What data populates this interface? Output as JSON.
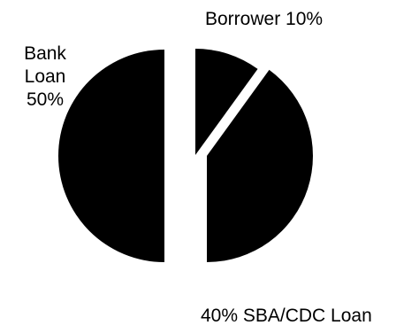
{
  "chart_data": {
    "type": "pie",
    "exploded": true,
    "fill_color": "#000000",
    "background_color": "#ffffff",
    "slices": [
      {
        "name": "Bank Loan",
        "value": 50,
        "label_lines": [
          "Bank",
          "Loan",
          "50%"
        ]
      },
      {
        "name": "SBA/CDC Loan",
        "value": 40,
        "label_lines": [
          "40% SBA/CDC Loan"
        ]
      },
      {
        "name": "Borrower",
        "value": 10,
        "label_lines": [
          "Borrower 10%"
        ]
      }
    ]
  }
}
